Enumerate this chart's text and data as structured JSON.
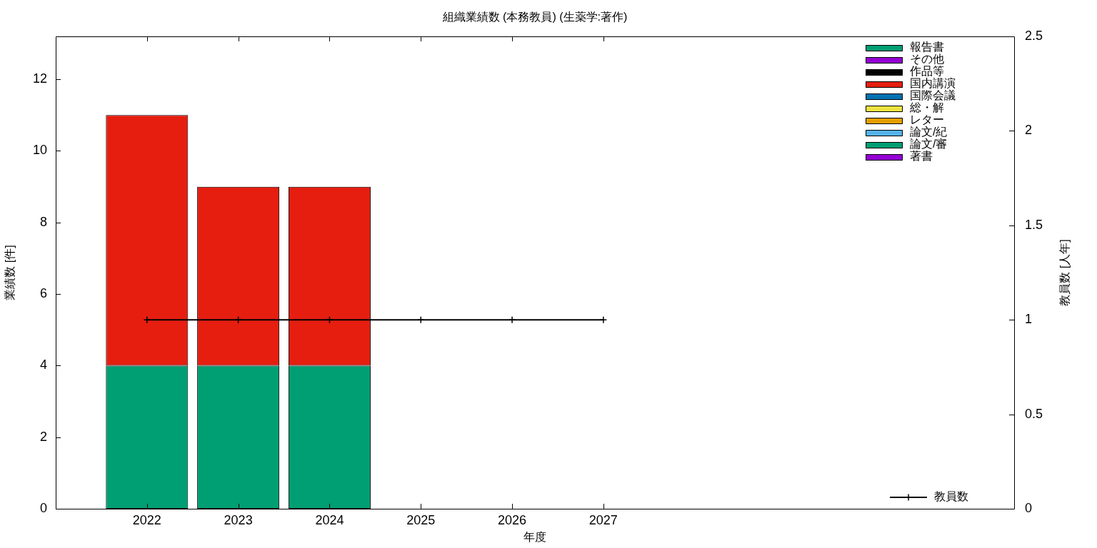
{
  "chart_data": {
    "type": "bar",
    "title": "組織業績数 (本務教員) (生薬学:著作)",
    "xlabel": "年度",
    "ylabel": "業績数 [件]",
    "y2label": "教員数 [人年]",
    "x": [
      2022,
      2023,
      2024,
      2025,
      2026,
      2027
    ],
    "stacked": true,
    "series": [
      {
        "name": "著書",
        "color": "#9400d3",
        "values": [
          0,
          0,
          0,
          null,
          null,
          null
        ]
      },
      {
        "name": "論文/審",
        "color": "#009e73",
        "values": [
          4,
          4,
          4,
          null,
          null,
          null
        ]
      },
      {
        "name": "論文/紀",
        "color": "#56b4e9",
        "values": [
          0,
          0,
          0,
          null,
          null,
          null
        ]
      },
      {
        "name": "レター",
        "color": "#e69f00",
        "values": [
          0,
          0,
          0,
          null,
          null,
          null
        ]
      },
      {
        "name": "総・解",
        "color": "#f0e442",
        "values": [
          0,
          0,
          0,
          null,
          null,
          null
        ]
      },
      {
        "name": "国際会議",
        "color": "#0072b2",
        "values": [
          0,
          0,
          0,
          null,
          null,
          null
        ]
      },
      {
        "name": "国内講演",
        "color": "#e51e10",
        "values": [
          7,
          5,
          5,
          null,
          null,
          null
        ]
      },
      {
        "name": "作品等",
        "color": "#000000",
        "values": [
          0,
          0,
          0,
          null,
          null,
          null
        ]
      },
      {
        "name": "その他",
        "color": "#9400d3",
        "values": [
          0,
          0,
          0,
          null,
          null,
          null
        ]
      },
      {
        "name": "報告書",
        "color": "#009e73",
        "values": [
          0,
          0,
          0,
          null,
          null,
          null
        ]
      },
      {
        "name": "教員数",
        "type": "line",
        "axis": "y2",
        "color": "#000000",
        "values": [
          1,
          1,
          1,
          1,
          1,
          1
        ]
      }
    ],
    "xlim": [
      2021,
      2031.5
    ],
    "xticks": [
      2022,
      2023,
      2024,
      2025,
      2026,
      2027
    ],
    "ylim": [
      0,
      13.2
    ],
    "yticks": [
      0,
      2,
      4,
      6,
      8,
      10,
      12
    ],
    "y2lim": [
      0,
      2.5
    ],
    "y2ticks": [
      0,
      0.5,
      1,
      1.5,
      2,
      2.5
    ],
    "marker": "cross",
    "legend": "top right"
  }
}
